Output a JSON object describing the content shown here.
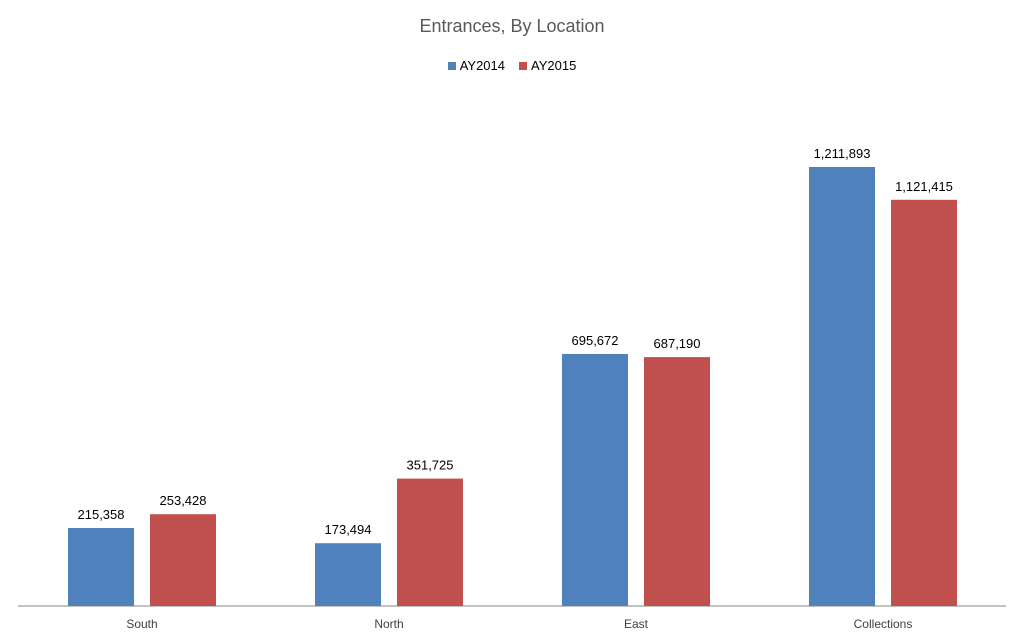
{
  "chart_data": {
    "type": "bar",
    "title": "Entrances, By Location",
    "categories": [
      "South",
      "North",
      "East",
      "Collections"
    ],
    "series": [
      {
        "name": "AY2014",
        "color": "#4f81bd",
        "values": [
          215358,
          173494,
          695672,
          1211893
        ],
        "labels": [
          "215,358",
          "173,494",
          "695,672",
          "1,211,893"
        ]
      },
      {
        "name": "AY2015",
        "color": "#c0504d",
        "values": [
          253428,
          351725,
          687190,
          1121415
        ],
        "labels": [
          "253,428",
          "351,725",
          "687,190",
          "1,121,415"
        ]
      }
    ],
    "ylim": [
      0,
      1300000
    ],
    "grid": false,
    "legend_position": "top"
  }
}
